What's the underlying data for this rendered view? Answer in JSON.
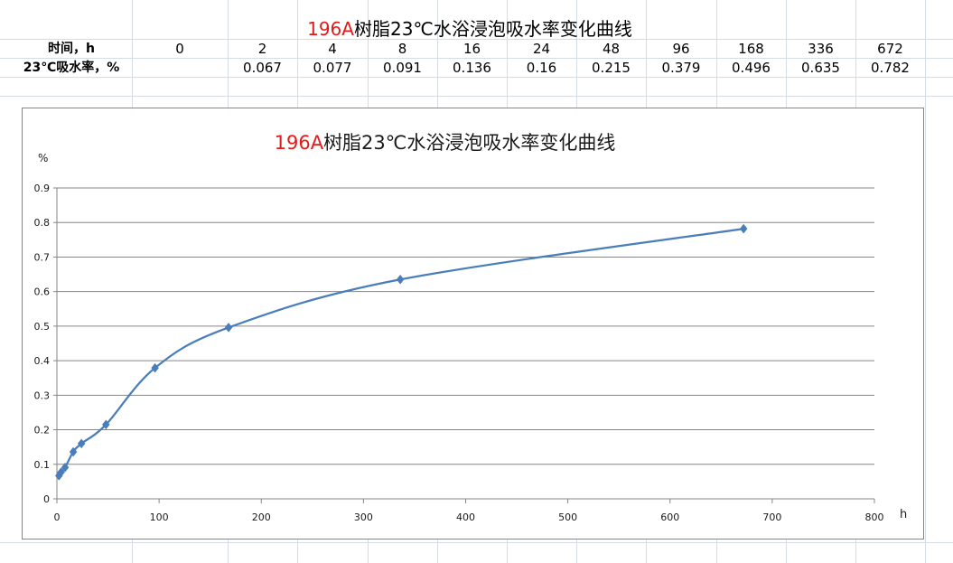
{
  "sheet": {
    "title_prefix": "196A",
    "title_rest": "树脂23℃水浴浸泡吸水率变化曲线",
    "time_label": "时间，h",
    "rate_label": "23℃吸水率，%",
    "hours": [
      "0",
      "2",
      "4",
      "8",
      "16",
      "24",
      "48",
      "96",
      "168",
      "336",
      "672"
    ],
    "rates": [
      "",
      "0.067",
      "0.077",
      "0.091",
      "0.136",
      "0.16",
      "0.215",
      "0.379",
      "0.496",
      "0.635",
      "0.782"
    ]
  },
  "chart_data": {
    "type": "line",
    "smooth": true,
    "title_prefix": "196A",
    "title_rest": "树脂23℃水浴浸泡吸水率变化曲线",
    "ylabel": "%",
    "xlabel": "h",
    "x": [
      2,
      4,
      8,
      16,
      24,
      48,
      96,
      168,
      336,
      672
    ],
    "y": [
      0.067,
      0.077,
      0.091,
      0.136,
      0.16,
      0.215,
      0.379,
      0.496,
      0.635,
      0.782
    ],
    "xlim": [
      0,
      800
    ],
    "ylim": [
      0,
      0.9
    ],
    "xticks": [
      "0",
      "100",
      "200",
      "300",
      "400",
      "500",
      "600",
      "700",
      "800"
    ],
    "yticks": [
      "0",
      "0.1",
      "0.2",
      "0.3",
      "0.4",
      "0.5",
      "0.6",
      "0.7",
      "0.8",
      "0.9"
    ],
    "grid": true,
    "line_color": "#4a7ebb",
    "marker": "diamond",
    "title_accent_color": "#e21b1b"
  }
}
